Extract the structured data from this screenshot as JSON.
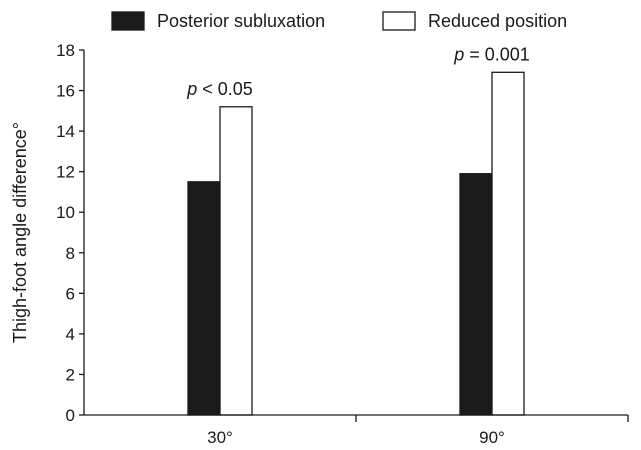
{
  "chart_data": {
    "type": "bar",
    "title": "",
    "xlabel": "",
    "ylabel": "Thigh-foot angle difference°",
    "categories": [
      "30°",
      "90°"
    ],
    "series": [
      {
        "name": "Posterior subluxation",
        "values": [
          11.5,
          11.9
        ],
        "color": "#1a1a1a"
      },
      {
        "name": "Reduced position",
        "values": [
          15.2,
          16.9
        ],
        "color": "#ffffff"
      }
    ],
    "ylim": [
      0,
      18
    ],
    "yticks": [
      0,
      2,
      4,
      6,
      8,
      10,
      12,
      14,
      16,
      18
    ],
    "grid": false,
    "legend_position": "top",
    "annotations": [
      {
        "category": "30°",
        "p_symbol": "p",
        "relation": "<",
        "value": "0.05"
      },
      {
        "category": "90°",
        "p_symbol": "p",
        "relation": "=",
        "value": "0.001"
      }
    ]
  }
}
